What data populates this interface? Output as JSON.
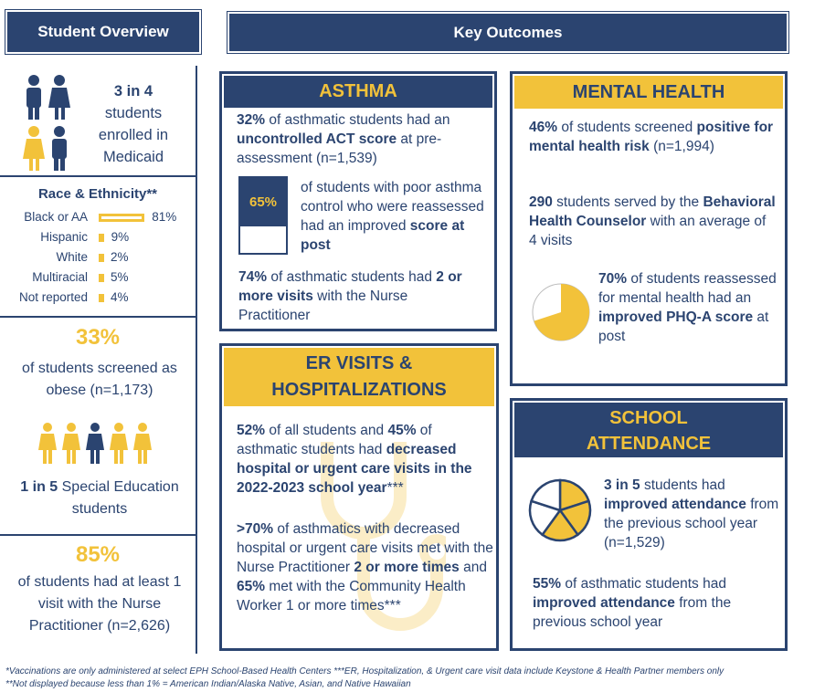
{
  "colors": {
    "navy": "#2b4470",
    "gold": "#f2c23a"
  },
  "overview": {
    "title": "Student Overview",
    "medicaid": {
      "stat": "3 in 4",
      "text": "students enrolled in Medicaid"
    },
    "race_title": "Race & Ethnicity**",
    "race": [
      {
        "label": "Black or AA",
        "value": 81,
        "text": "81%"
      },
      {
        "label": "Hispanic",
        "value": 9,
        "text": "9%"
      },
      {
        "label": "White",
        "value": 2,
        "text": "2%"
      },
      {
        "label": "Multiracial",
        "value": 5,
        "text": "5%"
      },
      {
        "label": "Not reported",
        "value": 4,
        "text": "4%"
      }
    ],
    "obese": {
      "stat": "33%",
      "text": "of students screened as obese (n=1,173)"
    },
    "special_ed": {
      "segments": [
        {
          "t": "1 in 5",
          "b": true
        },
        {
          "t": " Special Education students",
          "b": false
        }
      ]
    },
    "np": {
      "stat": "85%",
      "text": "of students had at least 1 visit with the Nurse Practitioner (n=2,626)"
    }
  },
  "key_outcomes": {
    "title": "Key Outcomes"
  },
  "asthma": {
    "title": "ASTHMA",
    "p1": [
      {
        "t": "32%",
        "b": true
      },
      {
        "t": " of asthmatic students had an ",
        "b": false
      },
      {
        "t": "uncontrolled ACT score",
        "b": true
      },
      {
        "t": " at pre-assessment (n=1,539)",
        "b": false
      }
    ],
    "gauge": {
      "value": 65,
      "text": "65%"
    },
    "p2": [
      {
        "t": "of students with poor asthma control who were reassessed had an improved ",
        "b": false
      },
      {
        "t": "score at post",
        "b": true
      }
    ],
    "p3": [
      {
        "t": "74%",
        "b": true
      },
      {
        "t": " of asthmatic students had ",
        "b": false
      },
      {
        "t": "2 or more visits",
        "b": true
      },
      {
        "t": " with the Nurse Practitioner",
        "b": false
      }
    ]
  },
  "mental": {
    "title": "MENTAL HEALTH",
    "p1": [
      {
        "t": "46%",
        "b": true
      },
      {
        "t": " of students screened ",
        "b": false
      },
      {
        "t": "positive for mental health risk",
        "b": true
      },
      {
        "t": " (n=1,994)",
        "b": false
      }
    ],
    "p2": [
      {
        "t": "290",
        "b": true
      },
      {
        "t": " students served by the ",
        "b": false
      },
      {
        "t": "Behavioral Health Counselor",
        "b": true
      },
      {
        "t": " with an average of 4 visits",
        "b": false
      }
    ],
    "pie_value": 70,
    "p3": [
      {
        "t": "70%",
        "b": true
      },
      {
        "t": " of students reassessed for mental health had an ",
        "b": false
      },
      {
        "t": "improved PHQ-A",
        "b": true
      },
      {
        "t": " score",
        "b": true
      },
      {
        "t": " at post",
        "b": false
      }
    ]
  },
  "er": {
    "title": "ER VISITS & HOSPITALIZATIONS",
    "p1": [
      {
        "t": "52%",
        "b": true
      },
      {
        "t": " of all students and ",
        "b": false
      },
      {
        "t": "45%",
        "b": true
      },
      {
        "t": " of asthmatic students had ",
        "b": false
      },
      {
        "t": "decreased hospital or urgent care visits in the 2022-2023 school year",
        "b": true
      },
      {
        "t": "***",
        "b": false
      }
    ],
    "p2": [
      {
        "t": ">70%",
        "b": true
      },
      {
        "t": " of asthmatics with decreased hospital or urgent care visits met with the Nurse Practitioner ",
        "b": false
      },
      {
        "t": "2 or more times",
        "b": true
      },
      {
        "t": " and ",
        "b": false
      },
      {
        "t": "65%",
        "b": true
      },
      {
        "t": " met with the Community Health Worker 1 or more times***",
        "b": false
      }
    ]
  },
  "attendance": {
    "title": "SCHOOL ATTENDANCE",
    "pie_slices": 5,
    "pie_filled": 3,
    "p1": [
      {
        "t": "3 in 5",
        "b": true
      },
      {
        "t": " students had ",
        "b": false
      },
      {
        "t": "improved attendance",
        "b": true
      },
      {
        "t": " from the previous school year (n=1,529)",
        "b": false
      }
    ],
    "p2": [
      {
        "t": "55%",
        "b": true
      },
      {
        "t": " of asthmatic students had ",
        "b": false
      },
      {
        "t": "improved attendance",
        "b": true
      },
      {
        "t": " from the previous school year",
        "b": false
      }
    ]
  },
  "footnotes": [
    "*Vaccinations are only administered at select EPH School-Based Health Centers ***ER, Hospitalization, & Urgent care visit data include Keystone & Health Partner members only",
    "**Not displayed because less than 1% = American Indian/Alaska Native, Asian, and Native Hawaiian"
  ]
}
